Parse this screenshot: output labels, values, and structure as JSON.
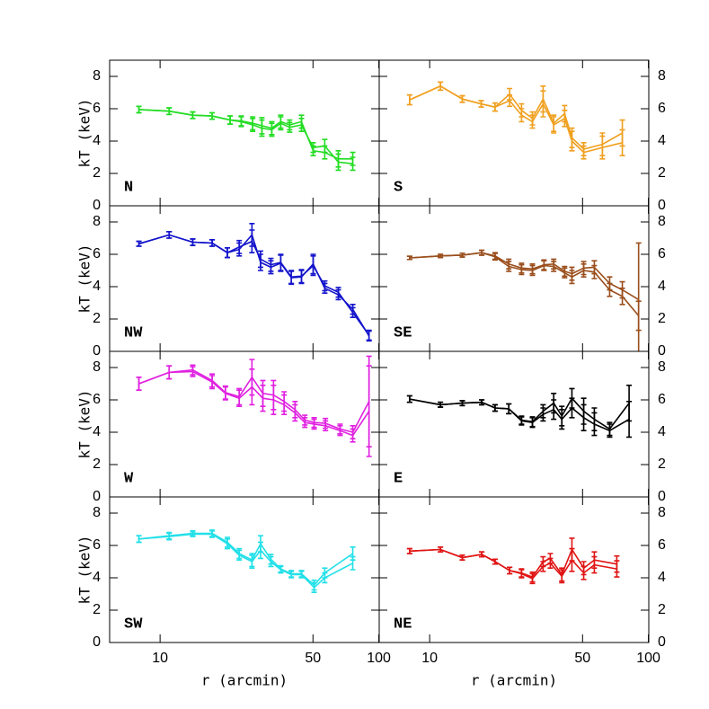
{
  "chart_data": [
    {
      "type": "line",
      "label": "N",
      "y_label": "kT (keV)",
      "yaxis": "left",
      "log_x": true,
      "xlim": [
        5.88,
        100.4
      ],
      "xticks": [
        10,
        50,
        100
      ],
      "ylim": [
        0,
        9
      ],
      "yticks": [
        0,
        2,
        4,
        6,
        8
      ],
      "x": [
        8.0,
        11.0,
        14.1,
        17.3,
        20.9,
        23.5,
        26.5,
        29.2,
        32.4,
        35.6,
        39.1,
        44.3,
        50.1,
        56.6,
        65.3,
        76.0
      ],
      "series": [
        {
          "color": "#22dd22",
          "values": [
            5.95,
            5.85,
            5.6,
            5.55,
            5.3,
            5.2,
            5.0,
            4.8,
            4.7,
            5.1,
            4.85,
            5.0,
            3.6,
            3.7,
            2.7,
            2.6
          ],
          "errors": [
            0.2,
            0.2,
            0.2,
            0.2,
            0.25,
            0.3,
            0.4,
            0.5,
            0.4,
            0.4,
            0.3,
            0.4,
            0.3,
            0.4,
            0.5,
            0.4
          ]
        },
        {
          "color": "#22dd22",
          "values": [
            5.95,
            5.85,
            5.6,
            5.55,
            5.3,
            5.25,
            5.1,
            4.95,
            4.8,
            5.2,
            5.0,
            5.2,
            3.4,
            3.3,
            2.9,
            2.9
          ],
          "errors": [
            0.2,
            0.2,
            0.2,
            0.2,
            0.25,
            0.3,
            0.4,
            0.5,
            0.4,
            0.4,
            0.3,
            0.4,
            0.3,
            0.4,
            0.5,
            0.4
          ]
        }
      ]
    },
    {
      "type": "line",
      "label": "S",
      "yaxis": "right",
      "log_x": true,
      "xlim": [
        5.88,
        100.4
      ],
      "xticks": [
        10,
        50,
        100
      ],
      "ylim": [
        0,
        9
      ],
      "yticks": [
        0,
        2,
        4,
        6,
        8
      ],
      "x": [
        8.1,
        11.2,
        14.1,
        17.2,
        19.9,
        23.2,
        26.3,
        29.5,
        33.0,
        36.9,
        41.4,
        44.7,
        50.6,
        61.6,
        76.0
      ],
      "series": [
        {
          "color": "#f0a020",
          "values": [
            6.55,
            7.4,
            6.6,
            6.3,
            6.1,
            6.9,
            5.9,
            5.4,
            6.6,
            5.1,
            5.7,
            4.2,
            3.5,
            3.8,
            4.5
          ],
          "errors": [
            0.3,
            0.25,
            0.2,
            0.2,
            0.25,
            0.35,
            0.4,
            0.4,
            0.8,
            0.5,
            0.5,
            0.6,
            0.4,
            0.7,
            0.8
          ]
        },
        {
          "color": "#f0a020",
          "values": [
            6.55,
            7.4,
            6.6,
            6.3,
            6.1,
            6.5,
            5.6,
            5.2,
            6.3,
            5.0,
            5.4,
            4.0,
            3.3,
            3.6,
            3.9
          ],
          "errors": [
            0.3,
            0.25,
            0.2,
            0.2,
            0.25,
            0.35,
            0.4,
            0.4,
            0.8,
            0.5,
            0.5,
            0.6,
            0.4,
            0.7,
            0.8
          ]
        }
      ]
    },
    {
      "type": "line",
      "label": "NW",
      "y_label": "kT (keV)",
      "yaxis": "left",
      "log_x": true,
      "xlim": [
        5.88,
        100.4
      ],
      "xticks": [
        10,
        50,
        100
      ],
      "ylim": [
        0,
        9
      ],
      "yticks": [
        0,
        2,
        4,
        6,
        8
      ],
      "x": [
        8.0,
        11.0,
        14.1,
        17.3,
        20.3,
        23.0,
        26.3,
        28.8,
        32.1,
        35.6,
        39.8,
        44.3,
        50.1,
        56.6,
        65.3,
        76.0,
        90.2
      ],
      "series": [
        {
          "color": "#1414cc",
          "values": [
            6.65,
            7.2,
            6.75,
            6.7,
            6.1,
            6.3,
            7.2,
            5.5,
            5.2,
            5.45,
            4.55,
            4.6,
            5.4,
            3.9,
            3.5,
            2.6,
            0.95
          ],
          "errors": [
            0.15,
            0.2,
            0.2,
            0.2,
            0.3,
            0.4,
            0.7,
            0.5,
            0.4,
            0.5,
            0.4,
            0.4,
            0.6,
            0.3,
            0.3,
            0.3,
            0.3
          ]
        },
        {
          "color": "#1414cc",
          "values": [
            6.65,
            7.2,
            6.75,
            6.7,
            6.1,
            6.45,
            6.8,
            5.7,
            5.35,
            5.5,
            4.6,
            4.65,
            5.3,
            4.05,
            3.65,
            2.4,
            1.0
          ],
          "errors": [
            0.15,
            0.2,
            0.2,
            0.2,
            0.3,
            0.4,
            0.7,
            0.5,
            0.4,
            0.5,
            0.4,
            0.4,
            0.6,
            0.3,
            0.3,
            0.3,
            0.3
          ]
        }
      ]
    },
    {
      "type": "line",
      "label": "SE",
      "yaxis": "right",
      "log_x": true,
      "xlim": [
        5.88,
        100.4
      ],
      "xticks": [
        10,
        50,
        100
      ],
      "ylim": [
        0,
        9
      ],
      "yticks": [
        0,
        2,
        4,
        6,
        8
      ],
      "x": [
        8.1,
        11.2,
        14.1,
        17.3,
        19.9,
        23.0,
        26.3,
        29.5,
        33.3,
        36.9,
        41.4,
        44.7,
        50.6,
        56.6,
        66.5,
        76.0,
        90.2
      ],
      "series": [
        {
          "color": "#9a4e1c",
          "values": [
            5.78,
            5.9,
            5.95,
            6.1,
            5.9,
            5.4,
            5.15,
            5.1,
            5.35,
            5.4,
            4.95,
            4.8,
            5.15,
            5.2,
            4.2,
            3.8,
            3.2
          ],
          "errors": [
            0.1,
            0.1,
            0.12,
            0.15,
            0.2,
            0.3,
            0.3,
            0.3,
            0.3,
            0.3,
            0.3,
            0.4,
            0.4,
            0.4,
            0.4,
            0.5,
            3.5
          ]
        },
        {
          "color": "#9a4e1c",
          "values": [
            5.78,
            5.9,
            5.95,
            6.1,
            5.85,
            5.25,
            5.05,
            5.0,
            5.3,
            5.25,
            4.85,
            4.6,
            5.0,
            4.9,
            3.8,
            3.4,
            2.2
          ],
          "errors": [
            0.1,
            0.1,
            0.12,
            0.15,
            0.2,
            0.3,
            0.3,
            0.3,
            0.3,
            0.3,
            0.3,
            0.4,
            0.4,
            0.4,
            0.4,
            0.5,
            0.9
          ]
        }
      ]
    },
    {
      "type": "line",
      "label": "W",
      "y_label": "kT (keV)",
      "yaxis": "left",
      "log_x": true,
      "xlim": [
        5.88,
        100.4
      ],
      "xticks": [
        10,
        50,
        100
      ],
      "ylim": [
        0,
        9
      ],
      "yticks": [
        0,
        2,
        4,
        6,
        8
      ],
      "x": [
        8.0,
        11.0,
        14.1,
        17.3,
        19.9,
        23.0,
        26.3,
        29.5,
        33.0,
        36.9,
        41.4,
        45.9,
        50.6,
        57.0,
        66.5,
        76.0,
        90.2
      ],
      "series": [
        {
          "color": "#e020e0",
          "values": [
            7.0,
            7.7,
            7.85,
            7.2,
            6.45,
            6.2,
            7.4,
            6.4,
            6.3,
            5.9,
            5.4,
            4.75,
            4.6,
            4.55,
            4.2,
            4.0,
            5.9
          ],
          "errors": [
            0.4,
            0.4,
            0.3,
            0.4,
            0.4,
            0.5,
            1.1,
            0.8,
            0.9,
            0.6,
            0.5,
            0.3,
            0.3,
            0.3,
            0.3,
            0.4,
            2.8
          ]
        },
        {
          "color": "#e020e0",
          "values": [
            7.0,
            7.7,
            7.75,
            7.1,
            6.4,
            6.1,
            6.8,
            6.1,
            6.0,
            5.7,
            5.2,
            4.6,
            4.5,
            4.4,
            4.1,
            3.8,
            5.3
          ],
          "errors": [
            0.4,
            0.4,
            0.3,
            0.4,
            0.4,
            0.5,
            1.1,
            0.8,
            0.9,
            0.6,
            0.5,
            0.3,
            0.3,
            0.3,
            0.3,
            0.4,
            2.8
          ]
        }
      ]
    },
    {
      "type": "line",
      "label": "E",
      "yaxis": "right",
      "log_x": true,
      "xlim": [
        5.88,
        100.4
      ],
      "xticks": [
        10,
        50,
        100
      ],
      "ylim": [
        0,
        9
      ],
      "yticks": [
        0,
        2,
        4,
        6,
        8
      ],
      "x": [
        8.1,
        11.2,
        14.1,
        17.3,
        19.9,
        23.0,
        26.3,
        29.5,
        33.0,
        36.9,
        40.2,
        44.7,
        50.6,
        56.6,
        66.5,
        81.6
      ],
      "series": [
        {
          "color": "#000000",
          "values": [
            6.05,
            5.7,
            5.8,
            5.85,
            5.5,
            5.45,
            4.75,
            4.65,
            5.3,
            5.8,
            5.0,
            6.1,
            5.3,
            4.8,
            4.2,
            5.8
          ],
          "errors": [
            0.2,
            0.15,
            0.15,
            0.15,
            0.2,
            0.3,
            0.25,
            0.3,
            0.4,
            0.6,
            0.6,
            0.6,
            0.8,
            0.7,
            0.4,
            1.1
          ]
        },
        {
          "color": "#000000",
          "values": [
            6.05,
            5.7,
            5.8,
            5.85,
            5.5,
            5.45,
            4.7,
            4.6,
            5.1,
            5.4,
            4.8,
            5.5,
            4.9,
            4.5,
            4.1,
            4.8
          ],
          "errors": [
            0.2,
            0.15,
            0.15,
            0.15,
            0.2,
            0.3,
            0.25,
            0.3,
            0.4,
            0.6,
            0.6,
            0.6,
            0.8,
            0.7,
            0.4,
            1.1
          ]
        }
      ]
    },
    {
      "type": "line",
      "label": "SW",
      "y_label": "kT (keV)",
      "x_label": "r (arcmin)",
      "yaxis": "left",
      "log_x": true,
      "xlim": [
        5.88,
        100.4
      ],
      "xticks": [
        10,
        50,
        100
      ],
      "ylim": [
        0,
        9
      ],
      "yticks": [
        0,
        2,
        4,
        6,
        8
      ],
      "x": [
        8.0,
        11.0,
        14.1,
        17.3,
        20.3,
        23.0,
        26.3,
        28.8,
        32.1,
        35.6,
        39.8,
        44.3,
        50.6,
        56.6,
        76.0
      ],
      "series": [
        {
          "color": "#22e0e8",
          "values": [
            6.4,
            6.6,
            6.75,
            6.75,
            6.2,
            5.5,
            5.1,
            6.1,
            5.15,
            4.55,
            4.25,
            4.25,
            3.55,
            4.3,
            5.5
          ],
          "errors": [
            0.2,
            0.2,
            0.15,
            0.2,
            0.3,
            0.3,
            0.4,
            0.5,
            0.3,
            0.2,
            0.2,
            0.2,
            0.3,
            0.3,
            0.4
          ]
        },
        {
          "color": "#22e0e8",
          "values": [
            6.4,
            6.55,
            6.7,
            6.7,
            6.1,
            5.4,
            5.0,
            5.7,
            5.0,
            4.5,
            4.2,
            4.2,
            3.4,
            4.0,
            4.9
          ],
          "errors": [
            0.2,
            0.2,
            0.15,
            0.2,
            0.3,
            0.3,
            0.4,
            0.5,
            0.3,
            0.2,
            0.2,
            0.2,
            0.3,
            0.3,
            0.4
          ]
        }
      ]
    },
    {
      "type": "line",
      "label": "NE",
      "x_label": "r (arcmin)",
      "yaxis": "right",
      "log_x": true,
      "xlim": [
        5.88,
        100.4
      ],
      "xticks": [
        10,
        50,
        100
      ],
      "ylim": [
        0,
        9
      ],
      "yticks": [
        0,
        2,
        4,
        6,
        8
      ],
      "x": [
        8.1,
        11.2,
        14.1,
        17.3,
        19.9,
        23.2,
        26.3,
        29.5,
        33.0,
        35.6,
        40.2,
        44.7,
        50.6,
        56.6,
        71.7
      ],
      "series": [
        {
          "color": "#e01414",
          "values": [
            5.65,
            5.75,
            5.25,
            5.45,
            5.0,
            4.45,
            4.3,
            4.05,
            5.0,
            5.2,
            4.2,
            5.75,
            4.6,
            5.1,
            4.85
          ],
          "errors": [
            0.15,
            0.15,
            0.15,
            0.15,
            0.15,
            0.2,
            0.25,
            0.3,
            0.3,
            0.3,
            0.4,
            0.7,
            0.4,
            0.5,
            0.5
          ]
        },
        {
          "color": "#e01414",
          "values": [
            5.65,
            5.75,
            5.25,
            5.45,
            5.0,
            4.45,
            4.25,
            3.95,
            4.7,
            4.9,
            4.1,
            5.1,
            4.3,
            4.8,
            4.55
          ],
          "errors": [
            0.15,
            0.15,
            0.15,
            0.15,
            0.15,
            0.2,
            0.25,
            0.3,
            0.3,
            0.3,
            0.4,
            0.7,
            0.4,
            0.5,
            0.5
          ]
        }
      ]
    }
  ]
}
